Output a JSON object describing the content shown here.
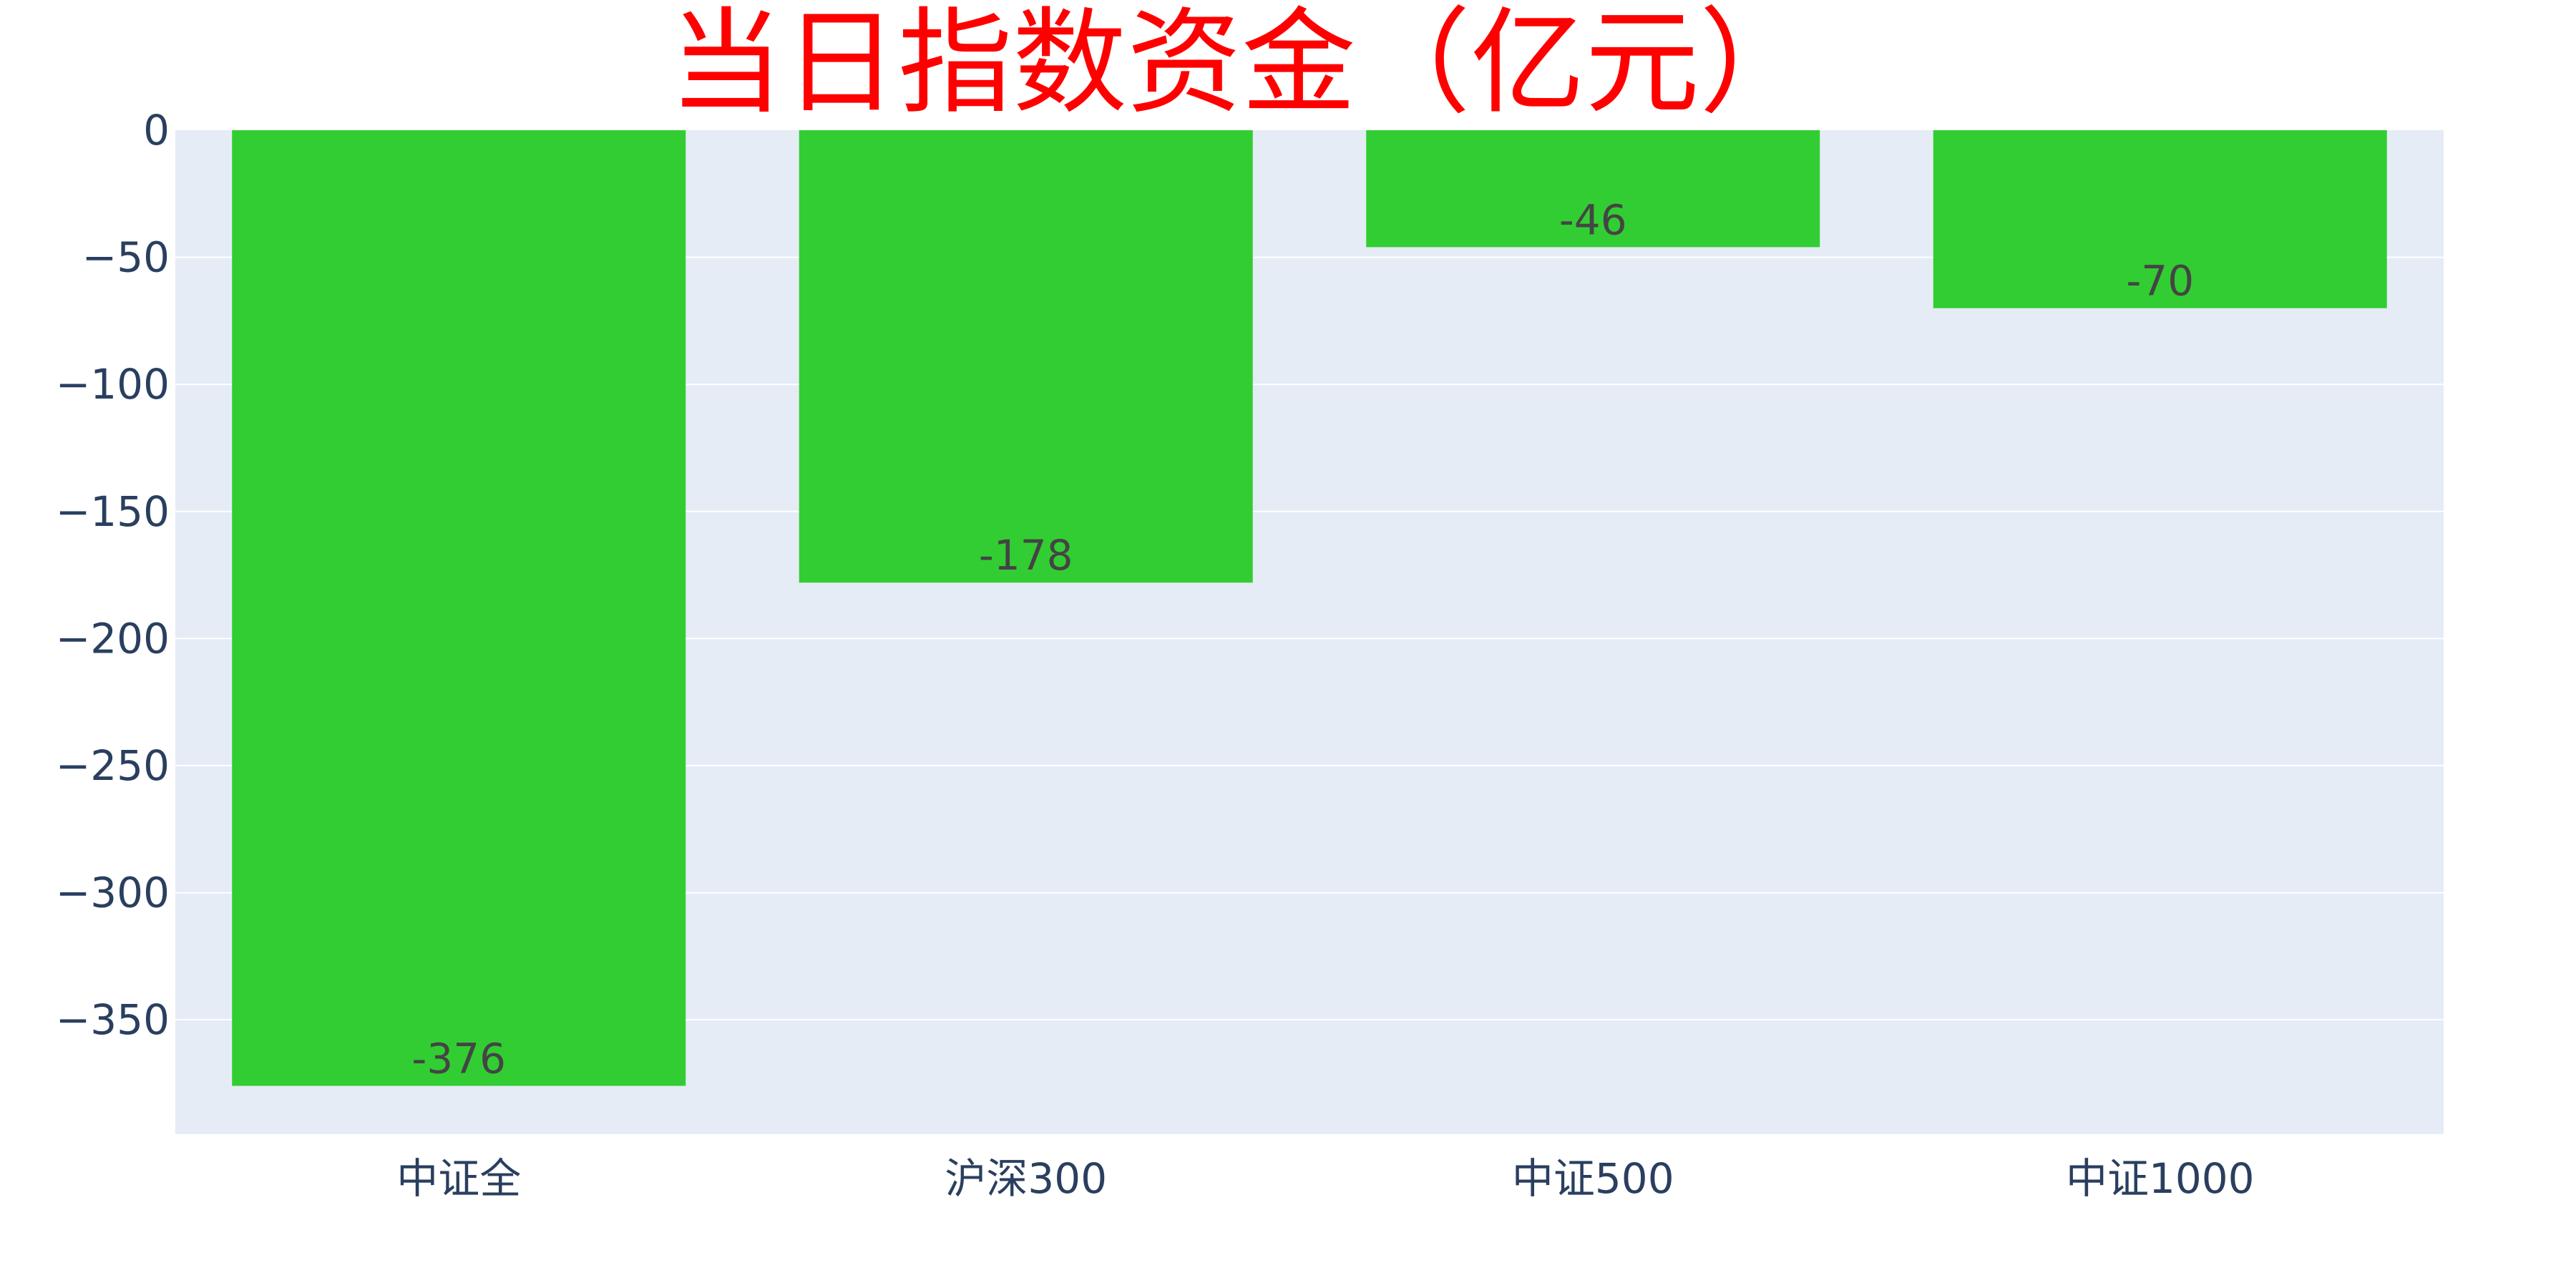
{
  "chart_data": {
    "type": "bar",
    "title": "当日指数资金（亿元）",
    "xlabel": "",
    "ylabel": "",
    "categories": [
      "中证全",
      "沪深300",
      "中证500",
      "中证1000"
    ],
    "values": [
      -376,
      -178,
      -46,
      -70
    ],
    "data_labels": [
      "-376",
      "-178",
      "-46",
      "-70"
    ],
    "ylim": [
      -395,
      0
    ],
    "yticks": [
      0,
      -50,
      -100,
      -150,
      -200,
      -250,
      -300,
      -350
    ],
    "ytick_labels": [
      "0",
      "−50",
      "−100",
      "−150",
      "−200",
      "−250",
      "−300",
      "−350"
    ],
    "grid": true,
    "legend": "none",
    "colors": {
      "bar": "#32cd32",
      "plot_bg": "#e5ecf6",
      "grid": "#ffffff",
      "title": "#ff0000",
      "tick_text": "#2a3f5f",
      "label_text": "#444444"
    }
  }
}
